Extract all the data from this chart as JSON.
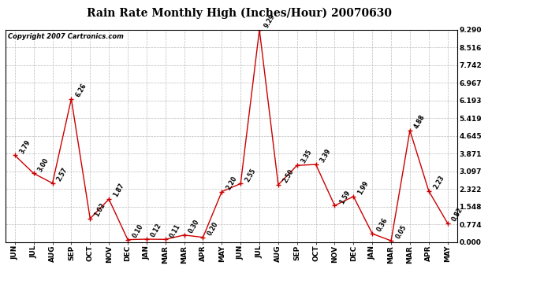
{
  "title": "Rain Rate Monthly High (Inches/Hour) 20070630",
  "copyright": "Copyright 2007 Cartronics.com",
  "months": [
    "JUN",
    "JUL",
    "AUG",
    "SEP",
    "OCT",
    "NOV",
    "DEC",
    "JAN",
    "MAR",
    "MAR",
    "APR",
    "MAY",
    "JUN",
    "JUL",
    "AUG",
    "SEP",
    "OCT",
    "NOV",
    "DEC",
    "JAN",
    "MAR",
    "MAR",
    "APR",
    "MAY"
  ],
  "values": [
    3.79,
    3.0,
    2.57,
    6.26,
    1.02,
    1.87,
    0.1,
    0.12,
    0.11,
    0.3,
    0.2,
    2.2,
    2.55,
    9.29,
    2.5,
    3.35,
    3.39,
    1.59,
    1.99,
    0.36,
    0.05,
    4.88,
    2.23,
    0.82
  ],
  "yticks": [
    0.0,
    0.774,
    1.548,
    2.322,
    3.097,
    3.871,
    4.645,
    5.419,
    6.193,
    6.967,
    7.742,
    8.516,
    9.29
  ],
  "ymax": 9.29,
  "line_color": "#cc0000",
  "marker_color": "#cc0000",
  "bg_color": "#ffffff",
  "grid_color": "#bbbbbb",
  "title_fontsize": 10,
  "copyright_fontsize": 6,
  "label_fontsize": 5.5,
  "tick_fontsize": 6.5
}
